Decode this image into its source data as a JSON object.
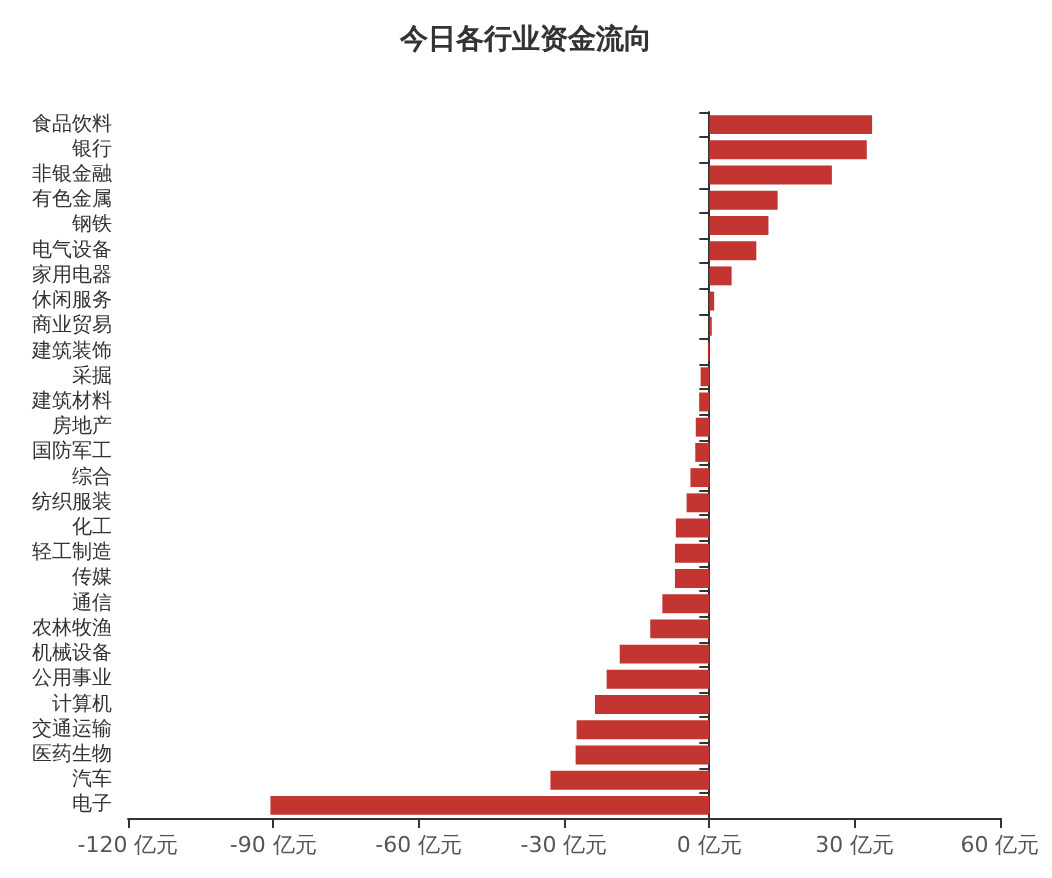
{
  "chart_data": {
    "type": "bar",
    "orientation": "horizontal",
    "title": "今日各行业资金流向",
    "categories": [
      "食品饮料",
      "银行",
      "非银金融",
      "有色金属",
      "钢铁",
      "电气设备",
      "家用电器",
      "休闲服务",
      "商业贸易",
      "建筑装饰",
      "采掘",
      "建筑材料",
      "房地产",
      "国防军工",
      "综合",
      "纺织服装",
      "化工",
      "轻工制造",
      "传媒",
      "通信",
      "农林牧渔",
      "机械设备",
      "公用事业",
      "计算机",
      "交通运输",
      "医药生物",
      "汽车",
      "电子"
    ],
    "values": [
      33.6,
      32.5,
      25.3,
      14.1,
      12.2,
      9.7,
      4.6,
      1.0,
      0.5,
      -0.3,
      -1.8,
      -2.1,
      -2.8,
      -2.9,
      -3.9,
      -4.7,
      -6.9,
      -7.1,
      -7.1,
      -9.7,
      -12.2,
      -18.5,
      -21.2,
      -23.6,
      -27.4,
      -27.6,
      -32.8,
      -90.6
    ],
    "color": "#c23531",
    "xlim": [
      -120,
      60
    ],
    "xticks": [
      {
        "value": -120,
        "label": "-120 亿元"
      },
      {
        "value": -90,
        "label": "-90 亿元"
      },
      {
        "value": -60,
        "label": "-60 亿元"
      },
      {
        "value": -30,
        "label": "-30 亿元"
      },
      {
        "value": 0,
        "label": "0 亿元"
      },
      {
        "value": 30,
        "label": "30 亿元"
      },
      {
        "value": 60,
        "label": "60 亿元"
      }
    ],
    "data_labels": false
  }
}
